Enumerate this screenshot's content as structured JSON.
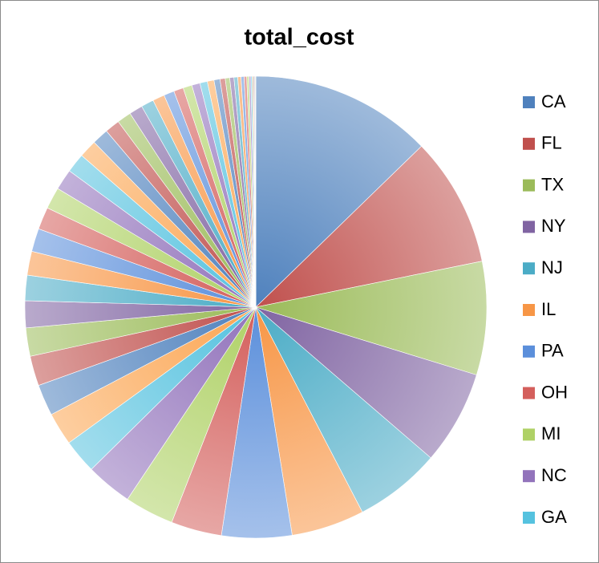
{
  "chart_data": {
    "type": "pie",
    "title": "total_cost",
    "categories": [
      "CA",
      "FL",
      "TX",
      "NY",
      "NJ",
      "IL",
      "PA",
      "OH",
      "MI",
      "NC",
      "GA",
      null,
      null,
      null,
      null,
      null,
      null,
      null,
      null,
      null,
      null,
      null,
      null,
      null,
      null,
      null,
      null,
      null,
      null,
      null,
      null,
      null,
      null,
      null,
      null,
      null,
      null,
      null,
      null,
      null,
      null,
      null,
      null,
      null,
      null,
      null,
      null,
      null,
      null,
      null,
      null
    ],
    "values": [
      12.2,
      8.7,
      7.6,
      6.3,
      5.8,
      4.9,
      4.7,
      3.4,
      3.3,
      3.1,
      2.3,
      2.2,
      2.1,
      2.0,
      1.9,
      1.8,
      1.7,
      1.6,
      1.55,
      1.5,
      1.45,
      1.4,
      1.3,
      1.2,
      1.1,
      1.0,
      0.95,
      0.9,
      0.85,
      0.8,
      0.7,
      0.65,
      0.6,
      0.55,
      0.5,
      0.45,
      0.4,
      0.35,
      0.3,
      0.28,
      0.25,
      0.22,
      0.2,
      0.18,
      0.15,
      0.12,
      0.1,
      0.08,
      0.06,
      0.05,
      0.04
    ],
    "colors": [
      "#4f81bd",
      "#c0504d",
      "#9bbb59",
      "#8064a2",
      "#4bacc6",
      "#f79646",
      "#5b8fdb",
      "#d45f5c",
      "#afd166",
      "#9273bb",
      "#55c2df",
      "#fba552"
    ]
  }
}
